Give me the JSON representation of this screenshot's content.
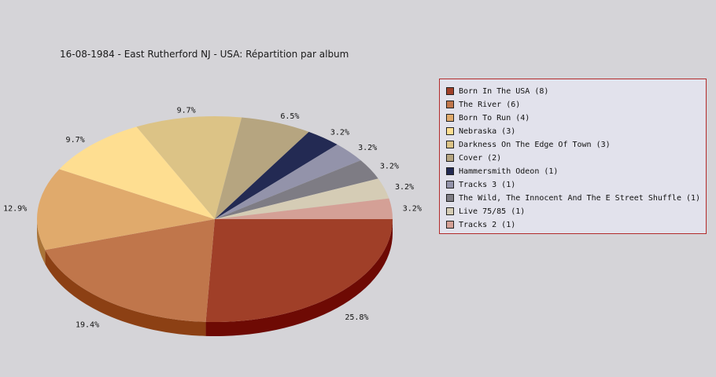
{
  "chart_data": {
    "type": "pie",
    "title": "16-08-1984 - East Rutherford NJ - USA:  Répartition par album",
    "legend_position": "right",
    "start_angle": 0,
    "slices": [
      {
        "name": "Born In The USA (8)",
        "value": 8,
        "pct_label": "25.8%",
        "color": "#a03f28",
        "side": "#6e0a04"
      },
      {
        "name": "The River (6)",
        "value": 6,
        "pct_label": "19.4%",
        "color": "#c0764b",
        "side": "#8c4014"
      },
      {
        "name": "Born To Run (4)",
        "value": 4,
        "pct_label": "12.9%",
        "color": "#e0aa6c",
        "side": "#aa7438"
      },
      {
        "name": "Nebraska (3)",
        "value": 3,
        "pct_label": "9.7%",
        "color": "#fede91",
        "side": "#c8a85a"
      },
      {
        "name": "Darkness On The Edge Of Town (3)",
        "value": 3,
        "pct_label": "9.7%",
        "color": "#dcc386",
        "side": "#a68e52"
      },
      {
        "name": "Cover (2)",
        "value": 2,
        "pct_label": "6.5%",
        "color": "#b6a580",
        "side": "#80704c"
      },
      {
        "name": "Hammersmith Odeon  (1)",
        "value": 1,
        "pct_label": "3.2%",
        "color": "#232a53",
        "side": "#0c1030"
      },
      {
        "name": "Tracks 3 (1)",
        "value": 1,
        "pct_label": "3.2%",
        "color": "#9393aa",
        "side": "#606074"
      },
      {
        "name": "The Wild, The Innocent And The E Street Shuffle (1)",
        "value": 1,
        "pct_label": "3.2%",
        "color": "#7e7c84",
        "side": "#4c4a52"
      },
      {
        "name": "Live 75/85 (1)",
        "value": 1,
        "pct_label": "3.2%",
        "color": "#d5ccb5",
        "side": "#a09880"
      },
      {
        "name": "Tracks 2 (1)",
        "value": 1,
        "pct_label": "3.2%",
        "color": "#d4a096",
        "side": "#a06c62"
      }
    ]
  }
}
